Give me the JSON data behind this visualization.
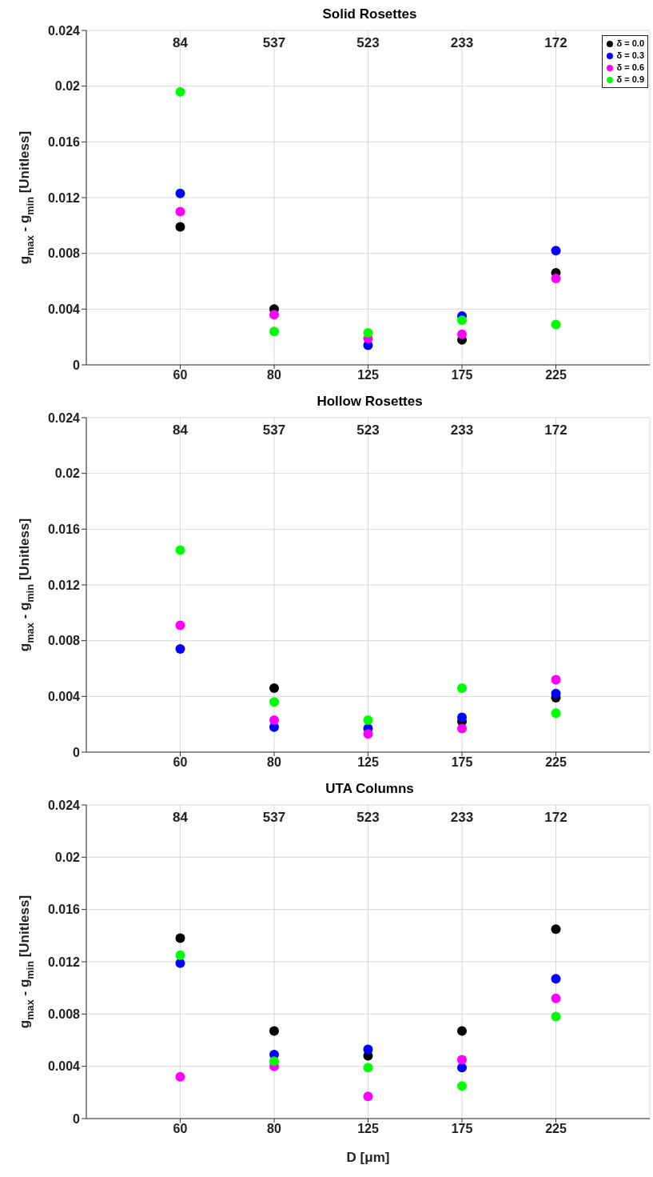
{
  "chart_data": [
    {
      "type": "scatter",
      "title": "Solid Rosettes",
      "ylabel": "g$_{max}$ - g$_{min}$ [Unitless]",
      "categories": [
        "60",
        "80",
        "125",
        "175",
        "225"
      ],
      "ylim": [
        0,
        0.024
      ],
      "yticks": [
        0,
        0.004,
        0.008,
        0.012,
        0.016,
        0.02,
        0.024
      ],
      "grid": true,
      "marker": "circle",
      "legend": "top right",
      "annotations": [
        "84",
        "537",
        "523",
        "233",
        "172"
      ],
      "series": [
        {
          "name": "δ = 0.0",
          "color": "#000000",
          "values": [
            0.0099,
            0.004,
            null,
            0.0018,
            0.0066
          ]
        },
        {
          "name": "δ = 0.3",
          "color": "#0000ff",
          "values": [
            0.0123,
            null,
            0.0014,
            0.0035,
            0.0082
          ]
        },
        {
          "name": "δ = 0.6",
          "color": "#ff00ff",
          "values": [
            0.011,
            0.0036,
            0.0019,
            0.0022,
            0.0062
          ]
        },
        {
          "name": "δ = 0.9",
          "color": "#00ff00",
          "values": [
            0.0196,
            0.0024,
            0.0023,
            0.0032,
            0.0029
          ]
        }
      ]
    },
    {
      "type": "scatter",
      "title": "Hollow Rosettes",
      "ylabel": "g$_{max}$ - g$_{min}$ [Unitless]",
      "categories": [
        "60",
        "80",
        "125",
        "175",
        "225"
      ],
      "ylim": [
        0,
        0.024
      ],
      "yticks": [
        0,
        0.004,
        0.008,
        0.012,
        0.016,
        0.02,
        0.024
      ],
      "grid": true,
      "marker": "circle",
      "annotations": [
        "84",
        "537",
        "523",
        "233",
        "172"
      ],
      "series": [
        {
          "color": "#000000",
          "values": [
            null,
            0.0046,
            null,
            0.0022,
            0.0039
          ]
        },
        {
          "color": "#0000ff",
          "values": [
            0.0074,
            0.0018,
            0.0017,
            0.0025,
            0.0042
          ]
        },
        {
          "color": "#ff00ff",
          "values": [
            0.0091,
            0.0023,
            0.0013,
            0.0017,
            0.0052
          ]
        },
        {
          "color": "#00ff00",
          "values": [
            0.0145,
            0.0036,
            0.0023,
            0.0046,
            0.0028
          ]
        }
      ]
    },
    {
      "type": "scatter",
      "title": "UTA Columns",
      "xlabel": "D [μm]",
      "ylabel": "g$_{max}$ - g$_{min}$ [Unitless]",
      "categories": [
        "60",
        "80",
        "125",
        "175",
        "225"
      ],
      "ylim": [
        0,
        0.024
      ],
      "yticks": [
        0,
        0.004,
        0.008,
        0.012,
        0.016,
        0.02,
        0.024
      ],
      "grid": true,
      "marker": "circle",
      "annotations": [
        "84",
        "537",
        "523",
        "233",
        "172"
      ],
      "series": [
        {
          "color": "#000000",
          "values": [
            0.0138,
            0.0067,
            0.0048,
            0.0067,
            0.0145
          ]
        },
        {
          "color": "#0000ff",
          "values": [
            0.0119,
            0.0049,
            0.0053,
            0.0039,
            0.0107
          ]
        },
        {
          "color": "#ff00ff",
          "values": [
            0.0032,
            0.004,
            0.0017,
            0.0045,
            0.0092
          ]
        },
        {
          "color": "#00ff00",
          "values": [
            0.0125,
            0.0044,
            0.0039,
            0.0025,
            0.0078
          ]
        }
      ]
    }
  ]
}
